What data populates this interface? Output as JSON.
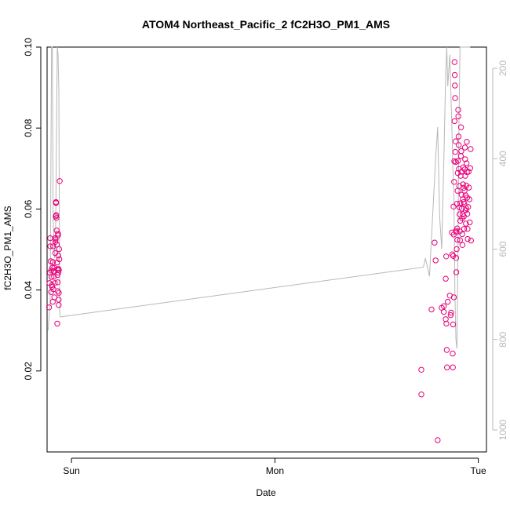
{
  "chart_data": {
    "type": "scatter",
    "title": "ATOM4 Northeast_Pacific_2 fC2H3O_PM1_AMS",
    "xlabel": "Date",
    "ylabel": "fC2H3O_PM1_AMS",
    "x_ticks": [
      "Sun",
      "Mon",
      "Tue"
    ],
    "x_tick_values_days": [
      0,
      1,
      2
    ],
    "xlim_days": [
      -0.12,
      2.04
    ],
    "ylim": [
      0.0,
      0.1
    ],
    "y_ticks": [
      "0.02",
      "0.04",
      "0.06",
      "0.08",
      "0.10"
    ],
    "y_tick_values": [
      0.02,
      0.04,
      0.06,
      0.08,
      0.1
    ],
    "y2_ticks": [
      "200",
      "400",
      "600",
      "800",
      "1000"
    ],
    "y2_tick_values": [
      200,
      400,
      600,
      800,
      1000
    ],
    "y2lim": [
      150,
      1020
    ],
    "colors": {
      "points": "#e8007a",
      "altitude_line": "#b8b8b8",
      "axes": "#000000",
      "right_axis": "#b8b8b8"
    },
    "series": [
      {
        "type": "scatter",
        "points": [
          [
            -0.11,
            0.0357
          ],
          [
            -0.108,
            0.0417
          ],
          [
            -0.106,
            0.0443
          ],
          [
            -0.105,
            0.0528
          ],
          [
            -0.104,
            0.0508
          ],
          [
            -0.102,
            0.0471
          ],
          [
            -0.1,
            0.0395
          ],
          [
            -0.099,
            0.0448
          ],
          [
            -0.098,
            0.0432
          ],
          [
            -0.096,
            0.0412
          ],
          [
            -0.095,
            0.0408
          ],
          [
            -0.094,
            0.0455
          ],
          [
            -0.092,
            0.0371
          ],
          [
            -0.091,
            0.0469
          ],
          [
            -0.09,
            0.0508
          ],
          [
            -0.089,
            0.0402
          ],
          [
            -0.088,
            0.0447
          ],
          [
            -0.086,
            0.0433
          ],
          [
            -0.085,
            0.0455
          ],
          [
            -0.084,
            0.0382
          ],
          [
            -0.082,
            0.0417
          ],
          [
            -0.081,
            0.0528
          ],
          [
            -0.08,
            0.0491
          ],
          [
            -0.079,
            0.0519
          ],
          [
            -0.078,
            0.0525
          ],
          [
            -0.077,
            0.0582
          ],
          [
            -0.076,
            0.0617
          ],
          [
            -0.076,
            0.0615
          ],
          [
            -0.075,
            0.0585
          ],
          [
            -0.074,
            0.0578
          ],
          [
            -0.073,
            0.0547
          ],
          [
            -0.072,
            0.0512
          ],
          [
            -0.071,
            0.0468
          ],
          [
            -0.07,
            0.0451
          ],
          [
            -0.07,
            0.0317
          ],
          [
            -0.069,
            0.0437
          ],
          [
            -0.068,
            0.0419
          ],
          [
            -0.067,
            0.0397
          ],
          [
            -0.066,
            0.0535
          ],
          [
            -0.066,
            0.0539
          ],
          [
            -0.065,
            0.0485
          ],
          [
            -0.064,
            0.0452
          ],
          [
            -0.064,
            0.0443
          ],
          [
            -0.063,
            0.0376
          ],
          [
            -0.063,
            0.0363
          ],
          [
            -0.062,
            0.0393
          ],
          [
            -0.062,
            0.0449
          ],
          [
            -0.061,
            0.0501
          ],
          [
            -0.06,
            0.0476
          ],
          [
            -0.058,
            0.0669
          ],
          [
            1.72,
            0.0203
          ],
          [
            1.72,
            0.0142
          ],
          [
            1.77,
            0.0352
          ],
          [
            1.785,
            0.0517
          ],
          [
            1.79,
            0.0473
          ],
          [
            1.8,
            0.0029
          ],
          [
            1.82,
            0.0356
          ],
          [
            1.83,
            0.036
          ],
          [
            1.83,
            0.0346
          ],
          [
            1.84,
            0.0428
          ],
          [
            1.84,
            0.0328
          ],
          [
            1.842,
            0.0483
          ],
          [
            1.843,
            0.0317
          ],
          [
            1.845,
            0.0252
          ],
          [
            1.846,
            0.0209
          ],
          [
            1.85,
            0.0371
          ],
          [
            1.86,
            0.0386
          ],
          [
            1.864,
            0.0338
          ],
          [
            1.866,
            0.0344
          ],
          [
            1.87,
            0.0542
          ],
          [
            1.872,
            0.0488
          ],
          [
            1.874,
            0.0243
          ],
          [
            1.875,
            0.0209
          ],
          [
            1.876,
            0.0315
          ],
          [
            1.877,
            0.0484
          ],
          [
            1.878,
            0.0606
          ],
          [
            1.879,
            0.0537
          ],
          [
            1.88,
            0.0382
          ],
          [
            1.881,
            0.0667
          ],
          [
            1.882,
            0.0718
          ],
          [
            1.883,
            0.0817
          ],
          [
            1.883,
            0.0963
          ],
          [
            1.884,
            0.0931
          ],
          [
            1.885,
            0.0905
          ],
          [
            1.886,
            0.0874
          ],
          [
            1.887,
            0.0741
          ],
          [
            1.888,
            0.0767
          ],
          [
            1.889,
            0.0716
          ],
          [
            1.89,
            0.0546
          ],
          [
            1.891,
            0.0479
          ],
          [
            1.892,
            0.0444
          ],
          [
            1.893,
            0.0543
          ],
          [
            1.894,
            0.0501
          ],
          [
            1.895,
            0.0613
          ],
          [
            1.896,
            0.0552
          ],
          [
            1.897,
            0.0524
          ],
          [
            1.898,
            0.0645
          ],
          [
            1.899,
            0.0689
          ],
          [
            1.9,
            0.0719
          ],
          [
            1.901,
            0.0845
          ],
          [
            1.902,
            0.0829
          ],
          [
            1.903,
            0.0779
          ],
          [
            1.904,
            0.0758
          ],
          [
            1.905,
            0.0699
          ],
          [
            1.906,
            0.0657
          ],
          [
            1.907,
            0.0604
          ],
          [
            1.908,
            0.0587
          ],
          [
            1.909,
            0.0545
          ],
          [
            1.91,
            0.0523
          ],
          [
            1.911,
            0.0571
          ],
          [
            1.912,
            0.0614
          ],
          [
            1.913,
            0.0682
          ],
          [
            1.914,
            0.0731
          ],
          [
            1.915,
            0.0802
          ],
          [
            1.916,
            0.0743
          ],
          [
            1.917,
            0.0692
          ],
          [
            1.918,
            0.0635
          ],
          [
            1.919,
            0.0601
          ],
          [
            1.92,
            0.0577
          ],
          [
            1.921,
            0.0538
          ],
          [
            1.922,
            0.0511
          ],
          [
            1.923,
            0.0587
          ],
          [
            1.924,
            0.0624
          ],
          [
            1.925,
            0.0661
          ],
          [
            1.926,
            0.0703
          ],
          [
            1.927,
            0.0652
          ],
          [
            1.928,
            0.0617
          ],
          [
            1.929,
            0.0582
          ],
          [
            1.93,
            0.0551
          ],
          [
            1.931,
            0.0613
          ],
          [
            1.932,
            0.0645
          ],
          [
            1.933,
            0.0698
          ],
          [
            1.934,
            0.0752
          ],
          [
            1.935,
            0.0723
          ],
          [
            1.936,
            0.0682
          ],
          [
            1.937,
            0.0634
          ],
          [
            1.938,
            0.0597
          ],
          [
            1.939,
            0.0564
          ],
          [
            1.94,
            0.0602
          ],
          [
            1.941,
            0.0658
          ],
          [
            1.942,
            0.0713
          ],
          [
            1.943,
            0.0766
          ],
          [
            1.944,
            0.0691
          ],
          [
            1.945,
            0.0628
          ],
          [
            1.946,
            0.0588
          ],
          [
            1.947,
            0.0551
          ],
          [
            1.948,
            0.0526
          ],
          [
            1.95,
            0.0605
          ],
          [
            1.952,
            0.0692
          ],
          [
            1.954,
            0.0653
          ],
          [
            1.956,
            0.0624
          ],
          [
            1.958,
            0.0567
          ],
          [
            1.96,
            0.0701
          ],
          [
            1.962,
            0.0748
          ],
          [
            1.964,
            0.0522
          ]
        ]
      },
      {
        "type": "line",
        "axis": "right",
        "points": [
          [
            -0.115,
            780
          ],
          [
            -0.105,
            720
          ],
          [
            -0.098,
            150
          ],
          [
            -0.094,
            150
          ],
          [
            -0.09,
            540
          ],
          [
            -0.083,
            620
          ],
          [
            -0.078,
            560
          ],
          [
            -0.07,
            150
          ],
          [
            -0.066,
            170
          ],
          [
            -0.062,
            250
          ],
          [
            -0.058,
            740
          ],
          [
            -0.055,
            750
          ],
          [
            1.73,
            640
          ],
          [
            1.74,
            620
          ],
          [
            1.76,
            660
          ],
          [
            1.79,
            400
          ],
          [
            1.8,
            330
          ],
          [
            1.81,
            530
          ],
          [
            1.82,
            600
          ],
          [
            1.83,
            410
          ],
          [
            1.84,
            210
          ],
          [
            1.845,
            150
          ],
          [
            1.85,
            240
          ],
          [
            1.86,
            170
          ],
          [
            1.87,
            330
          ],
          [
            1.875,
            420
          ],
          [
            1.88,
            480
          ],
          [
            1.885,
            700
          ],
          [
            1.89,
            800
          ],
          [
            1.895,
            820
          ],
          [
            1.9,
            600
          ],
          [
            1.905,
            310
          ],
          [
            1.91,
            150
          ],
          [
            1.93,
            150
          ],
          [
            1.94,
            150
          ],
          [
            1.96,
            150
          ]
        ]
      }
    ]
  }
}
